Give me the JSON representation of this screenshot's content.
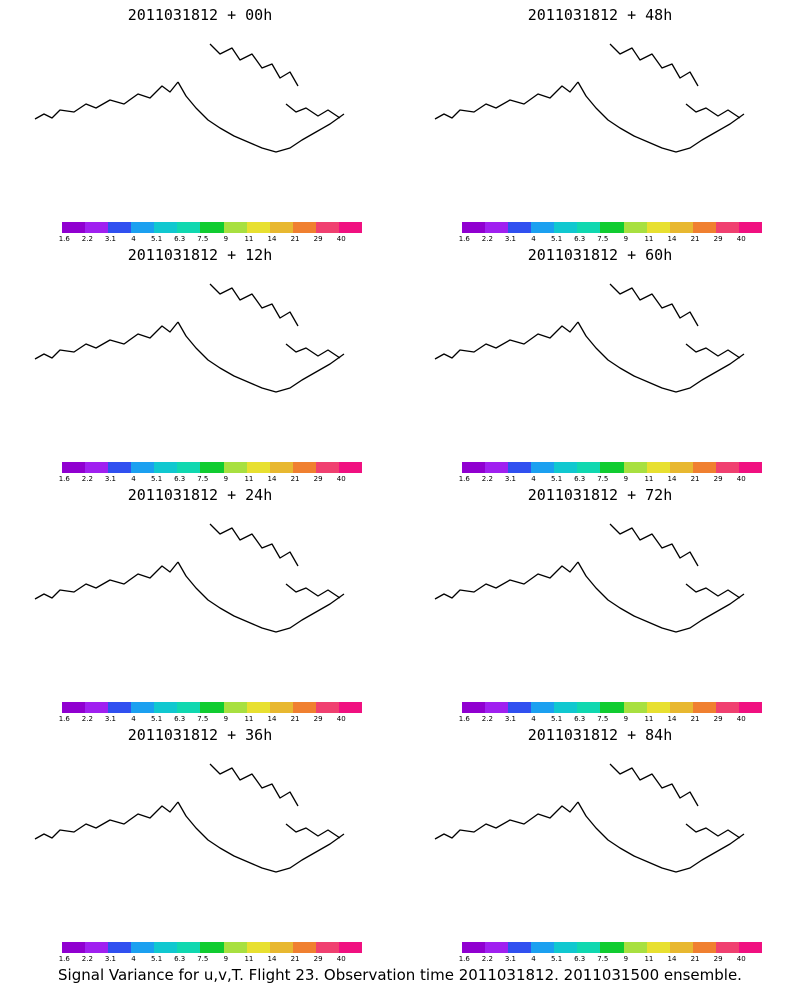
{
  "figure": {
    "caption": "Signal Variance for u,v,T. Flight 23. Observation time 2011031812. 2011031500 ensemble."
  },
  "panels": [
    {
      "title": "2011031812 + 00h",
      "level": 0
    },
    {
      "title": "2011031812 + 48h",
      "level": 2
    },
    {
      "title": "2011031812 + 12h",
      "level": 0
    },
    {
      "title": "2011031812 + 60h",
      "level": 3
    },
    {
      "title": "2011031812 + 24h",
      "level": 1
    },
    {
      "title": "2011031812 + 72h",
      "level": 3
    },
    {
      "title": "2011031812 + 36h",
      "level": 2
    },
    {
      "title": "2011031812 + 84h",
      "level": 3
    }
  ],
  "colorbar": {
    "labels": [
      "1.6",
      "2.2",
      "3.1",
      "4",
      "5.1",
      "6.3",
      "7.5",
      "9",
      "11",
      "14",
      "21",
      "29",
      "40"
    ],
    "colors": [
      "#9000d0",
      "#a020f0",
      "#3050f0",
      "#1ba0f0",
      "#10c8d0",
      "#10d8b0",
      "#10cc30",
      "#a8e040",
      "#e8e030",
      "#e8b830",
      "#f08030",
      "#f04070",
      "#f01080"
    ]
  }
}
